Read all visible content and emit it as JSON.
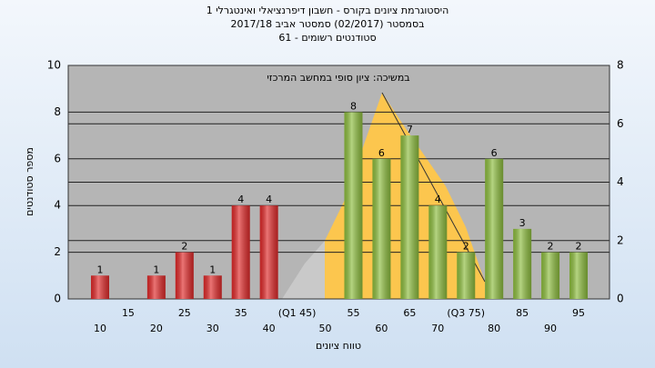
{
  "chart_data": {
    "type": "bar",
    "title": "היסטוגרמת ציונים בקורס - חשבון דיפרנציאלי ואינטגרלי 1",
    "subtitle": "בסמסטר  (02/2017)  סמסטר אביב 2017/18",
    "subtitle2": "סטודנטים רשומים - 61",
    "annotation": "במשיכה: ציון סופי במחשב המרכזי",
    "xlabel": "טווח ציונים",
    "ylabel": "מספר סטודנטים",
    "categories": [
      "10",
      "15",
      "20",
      "25",
      "30",
      "35",
      "40",
      "(Q1 45)",
      "50",
      "55",
      "60",
      "65",
      "70",
      "(Q3 75)",
      "80",
      "85",
      "90",
      "95"
    ],
    "values": [
      1,
      0,
      1,
      2,
      1,
      4,
      4,
      0,
      0,
      8,
      6,
      7,
      4,
      2,
      6,
      3,
      2,
      2
    ],
    "colors": [
      "#e02a2a",
      "#e02a2a",
      "#e02a2a",
      "#e02a2a",
      "#e02a2a",
      "#e02a2a",
      "#e02a2a",
      "#e02a2a",
      "#e02a2a",
      "#8dbd3e",
      "#8dbd3e",
      "#8dbd3e",
      "#8dbd3e",
      "#8dbd3e",
      "#8dbd3e",
      "#8dbd3e",
      "#8dbd3e",
      "#8dbd3e"
    ],
    "ylim": [
      0,
      10
    ],
    "yticks": [
      0,
      2,
      4,
      6,
      8,
      10
    ],
    "y2lim": [
      0,
      8
    ],
    "y2ticks": [
      0,
      2,
      4,
      6,
      8
    ],
    "grid": true
  }
}
